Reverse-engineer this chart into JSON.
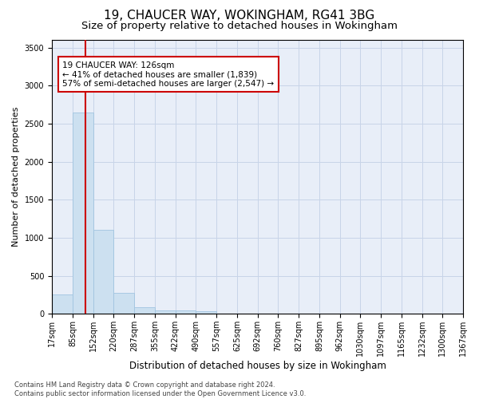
{
  "title1": "19, CHAUCER WAY, WOKINGHAM, RG41 3BG",
  "title2": "Size of property relative to detached houses in Wokingham",
  "xlabel": "Distribution of detached houses by size in Wokingham",
  "ylabel": "Number of detached properties",
  "bar_color": "#cce0f0",
  "bar_edge_color": "#a0c4e0",
  "vline_color": "#cc0000",
  "vline_value": 126,
  "annotation_line1": "19 CHAUCER WAY: 126sqm",
  "annotation_line2": "← 41% of detached houses are smaller (1,839)",
  "annotation_line3": "57% of semi-detached houses are larger (2,547) →",
  "annotation_box_color": "#cc0000",
  "grid_color": "#c8d4e8",
  "background_color": "#e8eef8",
  "bin_edges": [
    17,
    85,
    152,
    220,
    287,
    355,
    422,
    490,
    557,
    625,
    692,
    760,
    827,
    895,
    962,
    1030,
    1097,
    1165,
    1232,
    1300,
    1367
  ],
  "bar_heights": [
    250,
    2650,
    1100,
    280,
    90,
    50,
    40,
    30,
    5,
    3,
    2,
    2,
    1,
    1,
    1,
    1,
    0,
    0,
    0,
    0
  ],
  "ylim": [
    0,
    3600
  ],
  "yticks": [
    0,
    500,
    1000,
    1500,
    2000,
    2500,
    3000,
    3500
  ],
  "footnote": "Contains HM Land Registry data © Crown copyright and database right 2024.\nContains public sector information licensed under the Open Government Licence v3.0.",
  "title1_fontsize": 11,
  "title2_fontsize": 9.5,
  "xlabel_fontsize": 8.5,
  "ylabel_fontsize": 8,
  "tick_fontsize": 7,
  "annotation_fontsize": 7.5,
  "footnote_fontsize": 6
}
